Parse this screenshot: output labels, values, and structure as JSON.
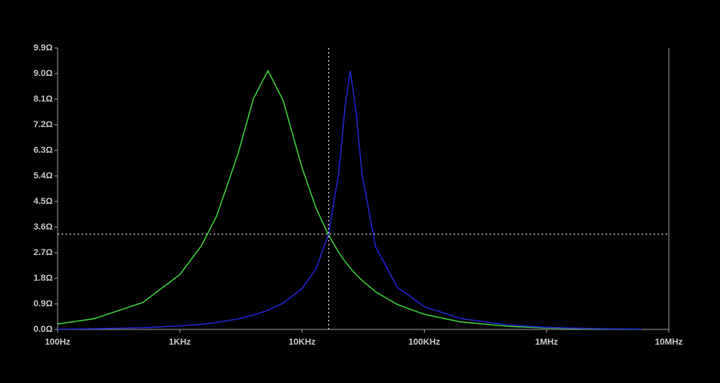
{
  "chart_data": {
    "type": "line",
    "xscale": "log",
    "x": [
      100,
      200,
      500,
      1000,
      1500,
      2000,
      3000,
      4000,
      5260,
      7000,
      10000,
      13000,
      16500,
      20000,
      22500,
      24800,
      27500,
      31000,
      40000,
      60000,
      100000,
      200000,
      500000,
      1000000,
      2000000,
      6000000
    ],
    "series": [
      {
        "color": "#3cc83c",
        "values": [
          0.19,
          0.38,
          0.95,
          1.93,
          2.94,
          3.99,
          6.19,
          8.12,
          9.1,
          8.05,
          5.68,
          4.27,
          3.31,
          2.7,
          2.39,
          2.16,
          1.94,
          1.72,
          1.32,
          0.88,
          0.53,
          0.26,
          0.105,
          0.053,
          0.026,
          0.0088
        ]
      },
      {
        "color": "#2323c8",
        "values": [
          0.0122,
          0.0245,
          0.061,
          0.122,
          0.184,
          0.246,
          0.372,
          0.502,
          0.672,
          0.926,
          1.44,
          2.13,
          3.36,
          5.55,
          7.86,
          9.1,
          7.73,
          5.42,
          2.9,
          1.49,
          0.8,
          0.38,
          0.151,
          0.075,
          0.0376,
          0.0125
        ]
      }
    ],
    "xlim": [
      100,
      10000000
    ],
    "xticks": [
      {
        "value": 100,
        "label": "100Hz"
      },
      {
        "value": 1000,
        "label": "1KHz"
      },
      {
        "value": 10000,
        "label": "10KHz"
      },
      {
        "value": 100000,
        "label": "100KHz"
      },
      {
        "value": 1000000,
        "label": "1MHz"
      },
      {
        "value": 10000000,
        "label": "10MHz"
      }
    ],
    "ylim": [
      0,
      9.9
    ],
    "yticks": [
      {
        "value": 0,
        "label": "0.0Ω"
      },
      {
        "value": 0.9,
        "label": "0.9Ω"
      },
      {
        "value": 1.8,
        "label": "1.8Ω"
      },
      {
        "value": 2.7,
        "label": "2.7Ω"
      },
      {
        "value": 3.6,
        "label": "3.6Ω"
      },
      {
        "value": 4.5,
        "label": "4.5Ω"
      },
      {
        "value": 5.4,
        "label": "5.4Ω"
      },
      {
        "value": 6.3,
        "label": "6.3Ω"
      },
      {
        "value": 7.2,
        "label": "7.2Ω"
      },
      {
        "value": 8.1,
        "label": "8.1Ω"
      },
      {
        "value": 9,
        "label": "9.0Ω"
      },
      {
        "value": 9.9,
        "label": "9.9Ω"
      }
    ],
    "cursor": {
      "x": 16500,
      "y": 3.35,
      "color": "#ffffff"
    }
  }
}
